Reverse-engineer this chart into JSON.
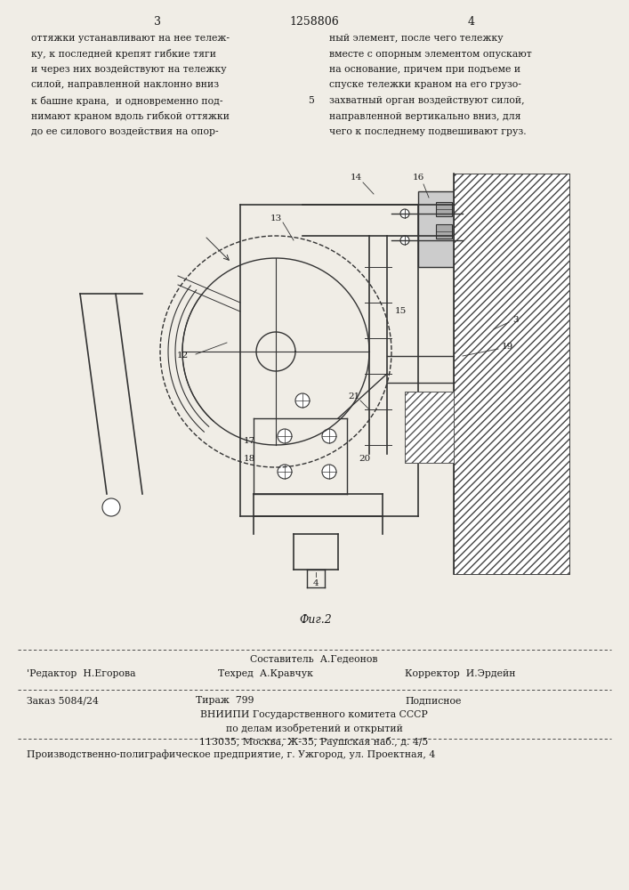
{
  "bg_color": "#f0ede6",
  "page_num_left": "3",
  "page_num_center": "1258806",
  "page_num_right": "4",
  "text_col1_lines": [
    "оттяжки устанавливают на нее тележ-",
    "ку, к последней крепят гибкие тяги",
    "и через них воздействуют на тележку",
    "силой, направленной наклонно вниз",
    "к башне крана,  и одновременно под-",
    "нимают краном вдоль гибкой оттяжки",
    "до ее силового воздействия на опор-"
  ],
  "text_col2_lines": [
    "ный элемент, после чего тележку",
    "вместе с опорным элементом опускают",
    "на основание, причем при подъеме и",
    "спуске тележки краном на его грузо-",
    "захватный орган воздействуют силой,",
    "направленной вертикально вниз, для",
    "чего к последнему подвешивают груз."
  ],
  "claim_number": "5",
  "fig_label": "Фиг.2",
  "footer_line1_left": "Составитель  А.Гедеонов",
  "footer_line2_left": "'Редактор  Н.Егорова",
  "footer_line2_mid": "Техред  А.Кравчук",
  "footer_line2_right": "Корректор  И.Эрдейн",
  "footer_line3_left": "Заказ 5084/24",
  "footer_line3_mid": "Тираж  799",
  "footer_line3_right": "Подписное",
  "footer_line4": "ВНИИПИ Государственного комитета СССР",
  "footer_line5": "по делам изобретений и открытий",
  "footer_line6": "113035, Москва, Ж-35, Раушская наб., д. 4/5",
  "footer_line7": "Производственно-полиграфическое предприятие, г. Ужгород, ул. Проектная, 4",
  "text_color": "#1a1a1a",
  "line_color": "#333333"
}
